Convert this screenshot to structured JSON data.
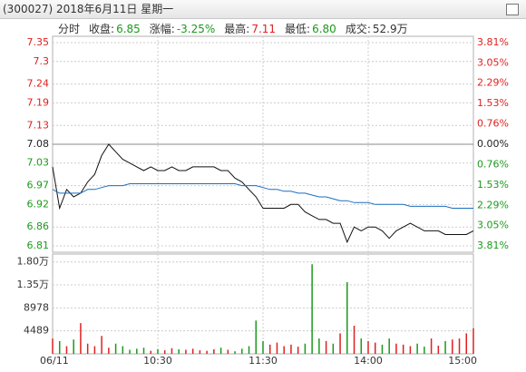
{
  "header": {
    "title": "(300027) 2018年6月11日 星期一",
    "tab": "分时",
    "stats": [
      {
        "label": "收盘:",
        "value": "6.85",
        "color": "#1a9a1a"
      },
      {
        "label": "涨幅:",
        "value": "-3.25%",
        "color": "#1a9a1a"
      },
      {
        "label": "最高:",
        "value": "7.11",
        "color": "#e02020"
      },
      {
        "label": "最低:",
        "value": "6.80",
        "color": "#1a9a1a"
      },
      {
        "label": "成交:",
        "value": "52.9万",
        "color": "#333333"
      }
    ]
  },
  "chart_data": [
    {
      "type": "line",
      "xlim": [
        0,
        240
      ],
      "xticks": [
        {
          "value": 0,
          "label": "06/11"
        },
        {
          "value": 60,
          "label": "10:30"
        },
        {
          "value": 120,
          "label": "11:30"
        },
        {
          "value": 180,
          "label": "14:00"
        },
        {
          "value": 240,
          "label": "15:00"
        }
      ],
      "ylim": [
        6.793,
        7.367
      ],
      "yticks": [
        7.35,
        7.3,
        7.24,
        7.19,
        7.13,
        7.08,
        7.03,
        6.97,
        6.92,
        6.86,
        6.81
      ],
      "y2lim": [
        -4.05,
        4.05
      ],
      "y2ticks": [
        {
          "value": 3.81,
          "label": "3.81%"
        },
        {
          "value": 3.05,
          "label": "3.05%"
        },
        {
          "value": 2.29,
          "label": "2.29%"
        },
        {
          "value": 1.53,
          "label": "1.53%"
        },
        {
          "value": 0.76,
          "label": "0.76%"
        },
        {
          "value": 0,
          "label": "0.00%"
        },
        {
          "value": -0.76,
          "label": "0.76%"
        },
        {
          "value": -1.53,
          "label": "1.53%"
        },
        {
          "value": -2.29,
          "label": "2.29%"
        },
        {
          "value": -3.05,
          "label": "3.05%"
        },
        {
          "value": -3.81,
          "label": "3.81%"
        }
      ],
      "up_color": "#e02020",
      "down_color": "#1a9a1a",
      "flat_color": "#222222",
      "grid": true,
      "x": [
        0,
        4,
        8,
        12,
        16,
        20,
        24,
        28,
        32,
        36,
        40,
        44,
        48,
        52,
        56,
        60,
        64,
        68,
        72,
        76,
        80,
        84,
        88,
        92,
        96,
        100,
        104,
        108,
        112,
        116,
        120,
        124,
        128,
        132,
        136,
        140,
        144,
        148,
        152,
        156,
        160,
        164,
        168,
        172,
        176,
        180,
        184,
        188,
        192,
        196,
        200,
        204,
        208,
        212,
        216,
        220,
        224,
        228,
        232,
        236,
        240
      ],
      "series": [
        {
          "color": "#111111",
          "values": [
            7.02,
            6.91,
            6.96,
            6.94,
            6.95,
            6.98,
            7.0,
            7.05,
            7.08,
            7.06,
            7.04,
            7.03,
            7.02,
            7.01,
            7.02,
            7.01,
            7.01,
            7.02,
            7.01,
            7.01,
            7.02,
            7.02,
            7.02,
            7.02,
            7.01,
            7.01,
            6.99,
            6.98,
            6.96,
            6.94,
            6.91,
            6.91,
            6.91,
            6.91,
            6.92,
            6.92,
            6.9,
            6.89,
            6.88,
            6.88,
            6.87,
            6.87,
            6.82,
            6.86,
            6.85,
            6.86,
            6.86,
            6.85,
            6.83,
            6.85,
            6.86,
            6.87,
            6.86,
            6.85,
            6.85,
            6.85,
            6.84,
            6.84,
            6.84,
            6.84,
            6.85
          ]
        },
        {
          "color": "#1a6fc0",
          "values": [
            6.96,
            6.95,
            6.95,
            6.95,
            6.95,
            6.96,
            6.96,
            6.965,
            6.97,
            6.97,
            6.97,
            6.975,
            6.975,
            6.975,
            6.975,
            6.975,
            6.975,
            6.975,
            6.975,
            6.975,
            6.975,
            6.975,
            6.975,
            6.975,
            6.975,
            6.975,
            6.975,
            6.97,
            6.97,
            6.97,
            6.965,
            6.96,
            6.96,
            6.955,
            6.955,
            6.95,
            6.95,
            6.945,
            6.94,
            6.94,
            6.935,
            6.93,
            6.93,
            6.925,
            6.925,
            6.925,
            6.92,
            6.92,
            6.92,
            6.92,
            6.92,
            6.915,
            6.915,
            6.915,
            6.915,
            6.915,
            6.915,
            6.91,
            6.91,
            6.91,
            6.91
          ]
        }
      ]
    },
    {
      "type": "bar",
      "xlim": [
        0,
        240
      ],
      "ylim": [
        0,
        19500
      ],
      "yticks": [
        4489,
        8978,
        {
          "value": 13467,
          "label": "1.35万"
        },
        {
          "value": 17956,
          "label": "1.80万"
        }
      ],
      "x": [
        0,
        4,
        8,
        12,
        16,
        20,
        24,
        28,
        32,
        36,
        40,
        44,
        48,
        52,
        56,
        60,
        64,
        68,
        72,
        76,
        80,
        84,
        88,
        92,
        96,
        100,
        104,
        108,
        112,
        116,
        120,
        124,
        128,
        132,
        136,
        140,
        144,
        148,
        152,
        156,
        160,
        164,
        168,
        172,
        176,
        180,
        184,
        188,
        192,
        196,
        200,
        204,
        208,
        212,
        216,
        220,
        224,
        228,
        232,
        236,
        240
      ],
      "values": [
        3000,
        2500,
        1500,
        2800,
        6000,
        2000,
        1500,
        3500,
        1200,
        2000,
        1500,
        800,
        1000,
        1200,
        600,
        900,
        700,
        1100,
        900,
        800,
        1000,
        700,
        600,
        900,
        1200,
        800,
        500,
        1000,
        1500,
        6500,
        2500,
        1800,
        2200,
        1500,
        1800,
        1400,
        2000,
        17500,
        3000,
        2500,
        2000,
        4000,
        14000,
        5500,
        3000,
        2500,
        2200,
        1800,
        3000,
        2000,
        1800,
        1500,
        2000,
        1400,
        3000,
        1600,
        2500,
        2800,
        3000,
        4000,
        5000
      ]
    }
  ]
}
